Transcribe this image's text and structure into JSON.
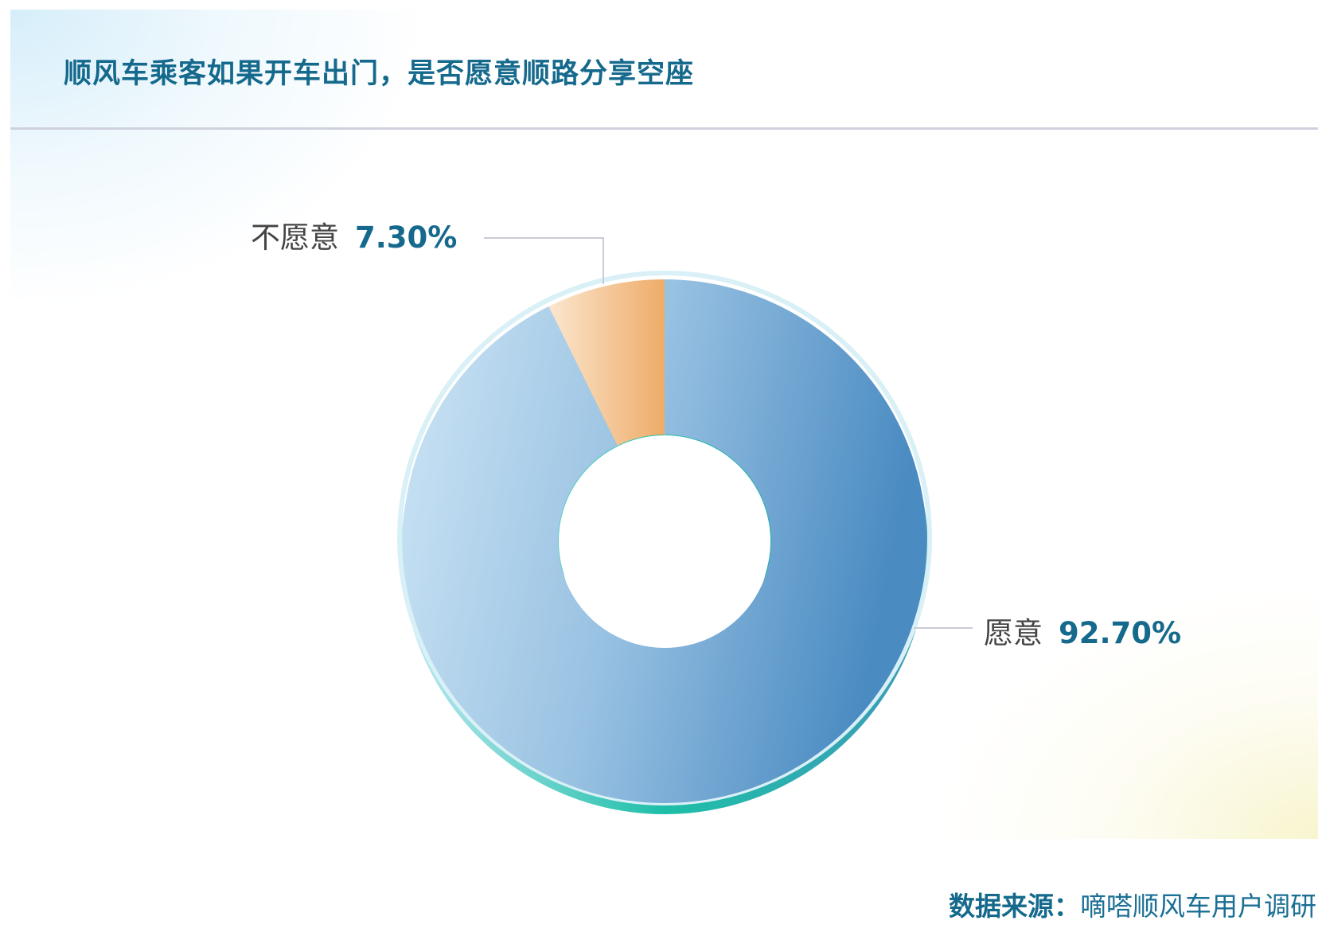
{
  "title": "顺风车乘客如果开车出门，是否愿意顺路分享空座",
  "source": {
    "label": "数据来源：",
    "value": "嘀嗒顺风车用户调研"
  },
  "chart_data": {
    "type": "pie",
    "donut": true,
    "title": "顺风车乘客如果开车出门，是否愿意顺路分享空座",
    "slices": [
      {
        "label": "愿意",
        "value": 92.7,
        "value_label": "92.70%",
        "color": "#5b9bd0"
      },
      {
        "label": "不愿意",
        "value": 7.3,
        "value_label": "7.30%",
        "color": "#efb071"
      }
    ],
    "accent_color": "#1fbfae",
    "legend": "none"
  }
}
